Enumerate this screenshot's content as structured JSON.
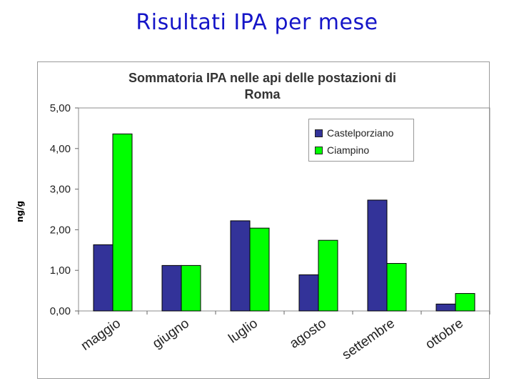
{
  "slide_title": "Risultati IPA per mese",
  "side_unit": "ng/g",
  "chart_data": {
    "type": "bar",
    "title": "Sommatoria IPA nelle api delle postazioni di Roma",
    "title_lines": [
      "Sommatoria IPA nelle api delle postazioni di",
      "Roma"
    ],
    "categories": [
      "maggio",
      "giugno",
      "luglio",
      "agosto",
      "settembre",
      "ottobre"
    ],
    "series": [
      {
        "name": "Castelporziano",
        "color": "#333399",
        "values": [
          1.63,
          1.12,
          2.22,
          0.89,
          2.73,
          0.17
        ]
      },
      {
        "name": "Ciampino",
        "color": "#00ff00",
        "values": [
          4.36,
          1.12,
          2.04,
          1.74,
          1.17,
          0.43
        ]
      }
    ],
    "ylim": [
      0,
      5
    ],
    "yticks": [
      "0,00",
      "1,00",
      "2,00",
      "3,00",
      "4,00",
      "5,00"
    ],
    "xlabel": "",
    "ylabel": "",
    "grid": false,
    "legend_position": "top-right"
  }
}
